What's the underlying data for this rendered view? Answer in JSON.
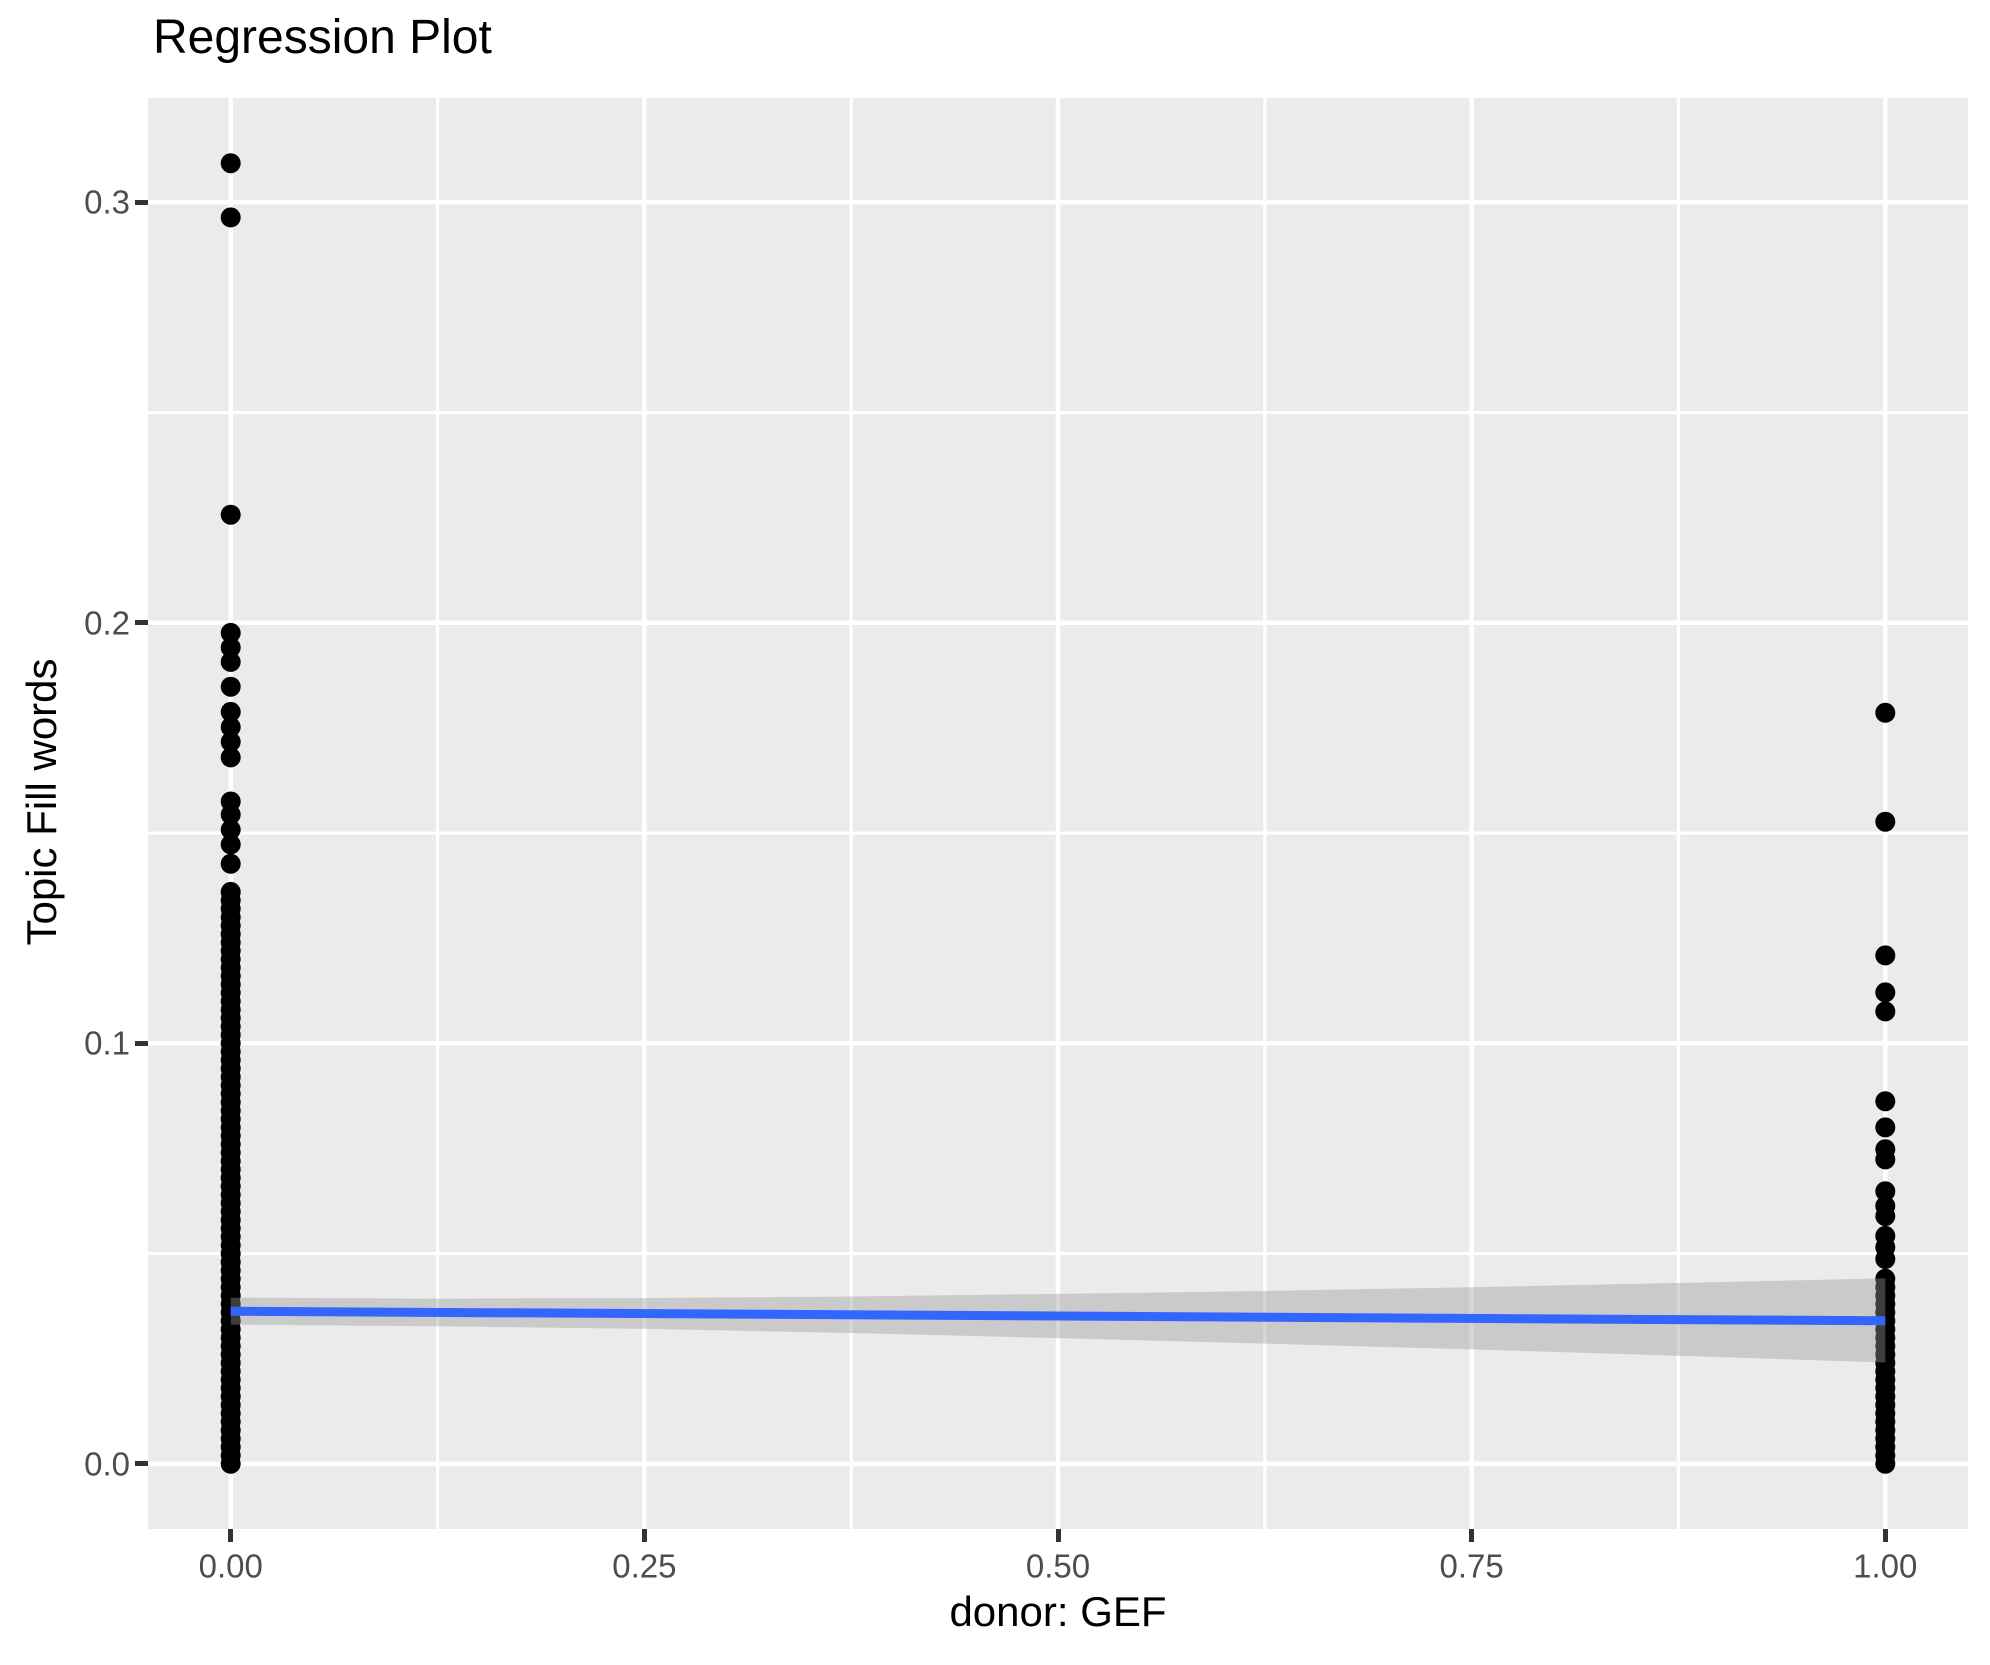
{
  "colors": {
    "background": "#FFFFFF",
    "panel": "#EBEBEB",
    "grid": "#FFFFFF",
    "point": "#000000",
    "line": "#3366FF",
    "ribbon": "rgba(153,153,153,0.4)",
    "tick_text": "#4D4D4D",
    "tick_mark": "#333333",
    "title_text": "#000000"
  },
  "chart_data": {
    "type": "scatter",
    "title": "Regression Plot",
    "xlabel": "donor: GEF",
    "ylabel": "Topic Fill words",
    "xlim": [
      -0.05,
      1.05
    ],
    "ylim": [
      -0.0155,
      0.3248
    ],
    "grid": "on",
    "legend": "none",
    "axes": {
      "x": {
        "tick_values": [
          0,
          0.25,
          0.5,
          0.75,
          1
        ],
        "tick_labels": [
          "0.00",
          "0.25",
          "0.50",
          "0.75",
          "1.00"
        ],
        "minor_ticks": [
          0.125,
          0.375,
          0.625,
          0.875
        ]
      },
      "y": {
        "tick_values": [
          0,
          0.1,
          0.2,
          0.3
        ],
        "tick_labels": [
          "0.0",
          "0.1",
          "0.2",
          "0.3"
        ],
        "minor_ticks": [
          0.05,
          0.15,
          0.25
        ]
      }
    },
    "series": [
      {
        "name": "donor GEF = 0",
        "x": 0,
        "y": [
          0.3093,
          0.2964,
          0.2257,
          0.1976,
          0.1941,
          0.1907,
          0.1848,
          0.1788,
          0.1752,
          0.1717,
          0.168,
          0.1575,
          0.1544,
          0.1508,
          0.1473,
          0.1427
        ]
      },
      {
        "name": "donor GEF = 1",
        "x": 1,
        "y": [
          0.1786,
          0.1527,
          0.1209,
          0.1121,
          0.1076,
          0.0862,
          0.08,
          0.0748,
          0.0724,
          0.0648,
          0.0613,
          0.0589,
          0.0542,
          0.0515,
          0.0487
        ]
      }
    ],
    "dense_stacks": [
      {
        "x": 0,
        "from": 0.0,
        "to": 0.1366,
        "step": 0.002
      },
      {
        "x": 1,
        "from": 0.0,
        "to": 0.0456,
        "step": 0.002
      }
    ],
    "regression": {
      "x": [
        0,
        1
      ],
      "y": [
        0.0363,
        0.034
      ]
    },
    "ribbon": {
      "x": [
        0,
        0.125,
        0.25,
        0.375,
        0.5,
        0.625,
        0.75,
        0.875,
        1
      ],
      "upper": [
        0.0395,
        0.0393,
        0.0394,
        0.0398,
        0.0404,
        0.0411,
        0.042,
        0.043,
        0.0441
      ],
      "lower": [
        0.0331,
        0.0327,
        0.0321,
        0.0311,
        0.0299,
        0.0286,
        0.0272,
        0.0257,
        0.0241
      ]
    }
  }
}
